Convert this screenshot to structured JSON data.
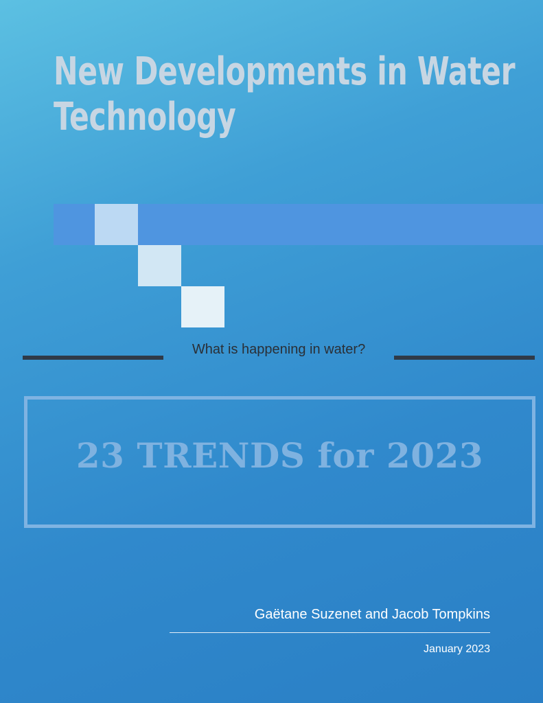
{
  "title": {
    "line1": "New Developments in Water",
    "line2": "Technology"
  },
  "subtitle": "What is happening in water?",
  "trend_box": {
    "text": "23 TRENDS for 2023"
  },
  "authors": "Gaëtane Suzenet and Jacob Tompkins",
  "date": "January 2023",
  "colors": {
    "background_top": "#5cc0e2",
    "background_bottom": "#2a7fc5",
    "band": "#4f95e0",
    "title": "#c7d6e3",
    "trend_text": "#7fb2e0",
    "rule": "#2f3a48"
  }
}
